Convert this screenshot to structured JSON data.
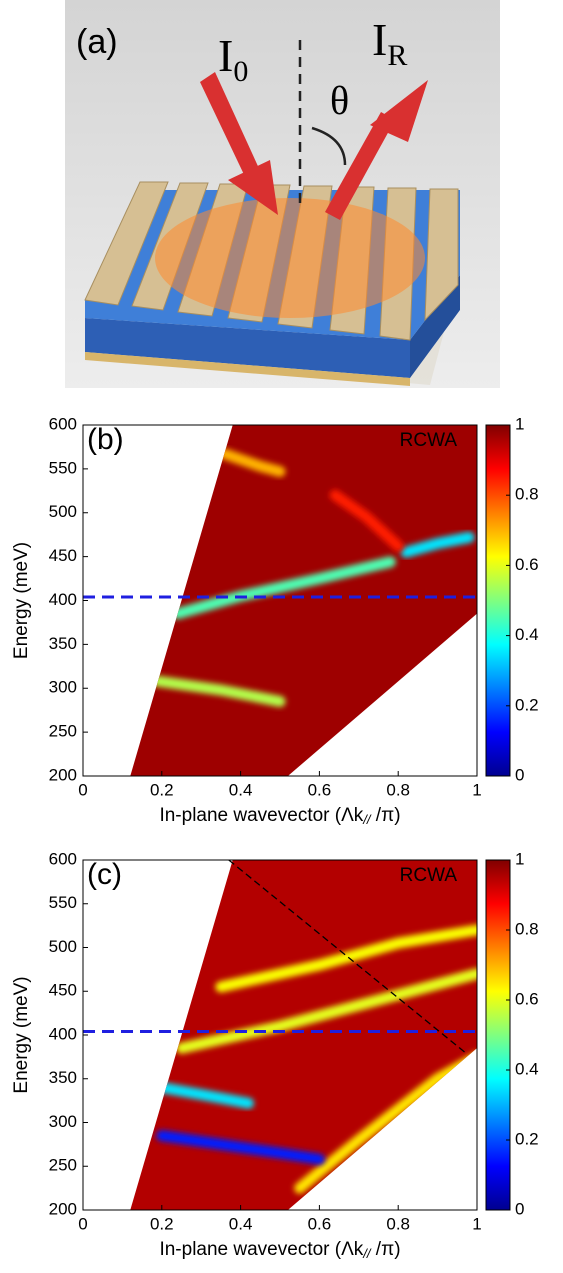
{
  "panel_a": {
    "label": "(a)",
    "incident": {
      "base": "I",
      "sub": "0"
    },
    "reflected": {
      "base": "I",
      "sub": "R"
    },
    "angle": "θ"
  },
  "chart_data": [
    {
      "type": "heatmap",
      "panel_label": "(b)",
      "annotation": "RCWA",
      "xlabel": {
        "main": "In-plane wavevector (Λk",
        "sub": "//",
        "tail": " /π)"
      },
      "ylabel": "Energy (meV)",
      "xlim": [
        0,
        1
      ],
      "ylim": [
        200,
        600
      ],
      "xticks": [
        0,
        0.2,
        0.4,
        0.6,
        0.8,
        1
      ],
      "yticks": [
        200,
        250,
        300,
        350,
        400,
        450,
        500,
        550,
        600
      ],
      "colormap": "jet",
      "colorbar": {
        "lim": [
          0,
          1
        ],
        "ticks": [
          0,
          0.2,
          0.4,
          0.6,
          0.8,
          1
        ]
      },
      "domain": {
        "x": [
          0.12,
          0.38,
          1,
          1,
          0.52
        ],
        "y": [
          200,
          600,
          600,
          385,
          200
        ]
      },
      "background_level": 0.97,
      "ridges": [
        {
          "x": [
            0.24,
            0.4,
            0.6,
            0.78
          ],
          "y": [
            385,
            405,
            425,
            444
          ],
          "level": 0.45
        },
        {
          "x": [
            0.19,
            0.35,
            0.5
          ],
          "y": [
            308,
            298,
            285
          ],
          "level": 0.55
        },
        {
          "x": [
            0.82,
            0.9,
            0.98
          ],
          "y": [
            455,
            465,
            472
          ],
          "level": 0.35
        },
        {
          "x": [
            0.36,
            0.45,
            0.5
          ],
          "y": [
            567,
            553,
            547
          ],
          "level": 0.7
        },
        {
          "x": [
            0.64,
            0.72,
            0.8
          ],
          "y": [
            520,
            495,
            462
          ],
          "level": 0.85
        }
      ],
      "lines": [
        {
          "x": [
            0,
            1
          ],
          "y": [
            404,
            404
          ],
          "color": "#1f1fe0"
        }
      ]
    },
    {
      "type": "heatmap",
      "panel_label": "(c)",
      "annotation": "RCWA",
      "xlabel": {
        "main": "In-plane wavevector (Λk",
        "sub": "//",
        "tail": " /π)"
      },
      "ylabel": "Energy (meV)",
      "xlim": [
        0,
        1
      ],
      "ylim": [
        200,
        600
      ],
      "xticks": [
        0,
        0.2,
        0.4,
        0.6,
        0.8,
        1
      ],
      "yticks": [
        200,
        250,
        300,
        350,
        400,
        450,
        500,
        550,
        600
      ],
      "colormap": "jet",
      "colorbar": {
        "lim": [
          0,
          1
        ],
        "ticks": [
          0,
          0.2,
          0.4,
          0.6,
          0.8,
          1
        ]
      },
      "domain": {
        "x": [
          0.12,
          0.38,
          1,
          1,
          0.52
        ],
        "y": [
          200,
          600,
          600,
          385,
          200
        ]
      },
      "background_level": 0.95,
      "ridges": [
        {
          "x": [
            0.55,
            0.7,
            0.9,
            1
          ],
          "y": [
            225,
            280,
            350,
            375
          ],
          "level": 0.65
        },
        {
          "x": [
            0.25,
            0.5,
            0.75,
            1
          ],
          "y": [
            385,
            410,
            440,
            470
          ],
          "level": 0.6
        },
        {
          "x": [
            0.35,
            0.6,
            0.8,
            1
          ],
          "y": [
            455,
            480,
            505,
            520
          ],
          "level": 0.62
        },
        {
          "x": [
            0.2,
            0.3,
            0.42
          ],
          "y": [
            340,
            332,
            322
          ],
          "level": 0.35
        },
        {
          "x": [
            0.2,
            0.35,
            0.5,
            0.6
          ],
          "y": [
            285,
            275,
            265,
            258
          ],
          "level": 0.15
        }
      ],
      "lines": [
        {
          "x": [
            0,
            1
          ],
          "y": [
            404,
            404
          ],
          "color": "#1f1fe0"
        },
        {
          "x": [
            0.37,
            0.97
          ],
          "y": [
            600,
            380
          ],
          "color": "#000000"
        }
      ]
    }
  ]
}
